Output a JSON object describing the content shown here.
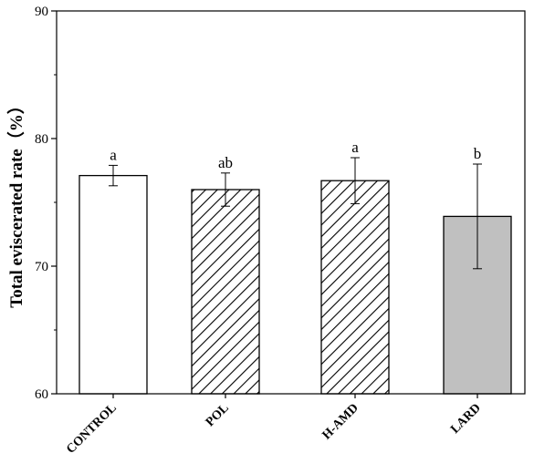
{
  "chart_data": {
    "type": "bar",
    "title": "",
    "xlabel": "",
    "ylabel": "Total eviscerated rate（%）",
    "ylim": [
      60,
      90
    ],
    "yticks": [
      60,
      70,
      80,
      90
    ],
    "categories": [
      "CONTROL",
      "POL",
      "H-AMD",
      "LARD"
    ],
    "values": [
      77.1,
      76.0,
      76.7,
      73.9
    ],
    "errors": [
      0.8,
      1.3,
      1.8,
      4.1
    ],
    "significance": [
      "a",
      "ab",
      "a",
      "b"
    ],
    "fills": [
      "none",
      "right-hatch",
      "right-hatch",
      "#c0c0c0"
    ],
    "grid": false,
    "legend": "none"
  },
  "colors": {
    "axis": "#000000",
    "bar_outline": "#000000",
    "lard_fill": "#c0c0c0"
  }
}
